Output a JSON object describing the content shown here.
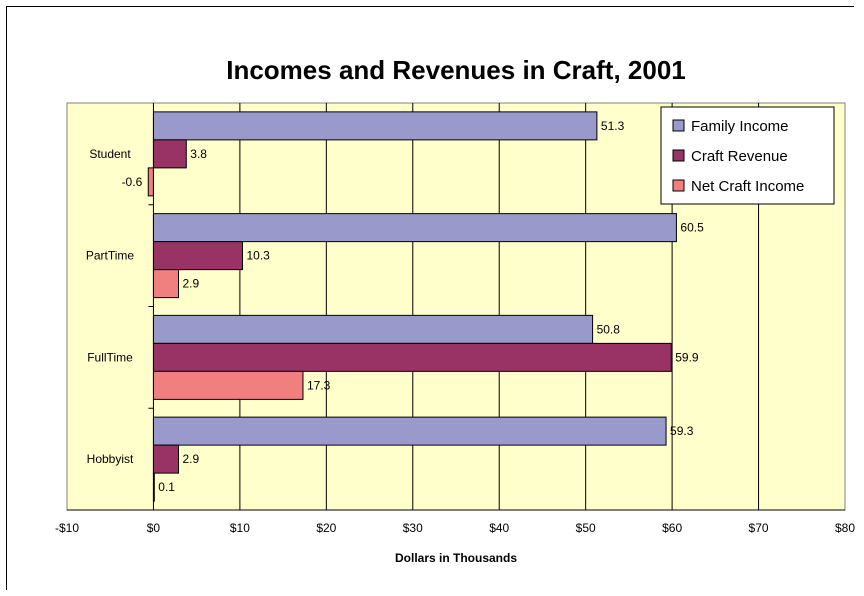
{
  "chart_data": {
    "type": "bar",
    "orientation": "horizontal",
    "title": "Incomes and Revenues in Craft, 2001",
    "xlabel": "Dollars in Thousands",
    "ylabel": "",
    "categories": [
      "Student",
      "PartTime",
      "FullTime",
      "Hobbyist"
    ],
    "series": [
      {
        "name": "Family Income",
        "color": "#9999cc",
        "values": [
          51.3,
          60.5,
          50.8,
          59.3
        ]
      },
      {
        "name": "Craft Revenue",
        "color": "#993366",
        "values": [
          3.8,
          10.3,
          59.9,
          2.9
        ]
      },
      {
        "name": "Net Craft Income",
        "color": "#f08080",
        "values": [
          -0.6,
          2.9,
          17.3,
          0.1
        ]
      }
    ],
    "xlim": [
      -10,
      80
    ],
    "x_ticks": [
      -10,
      0,
      10,
      20,
      30,
      40,
      50,
      60,
      70,
      80
    ],
    "x_tick_labels": [
      "-$10",
      "$0",
      "$10",
      "$20",
      "$30",
      "$40",
      "$50",
      "$60",
      "$70",
      "$80"
    ],
    "grid": true,
    "legend_position": "top-right",
    "plot_background": "#ffffcc"
  }
}
